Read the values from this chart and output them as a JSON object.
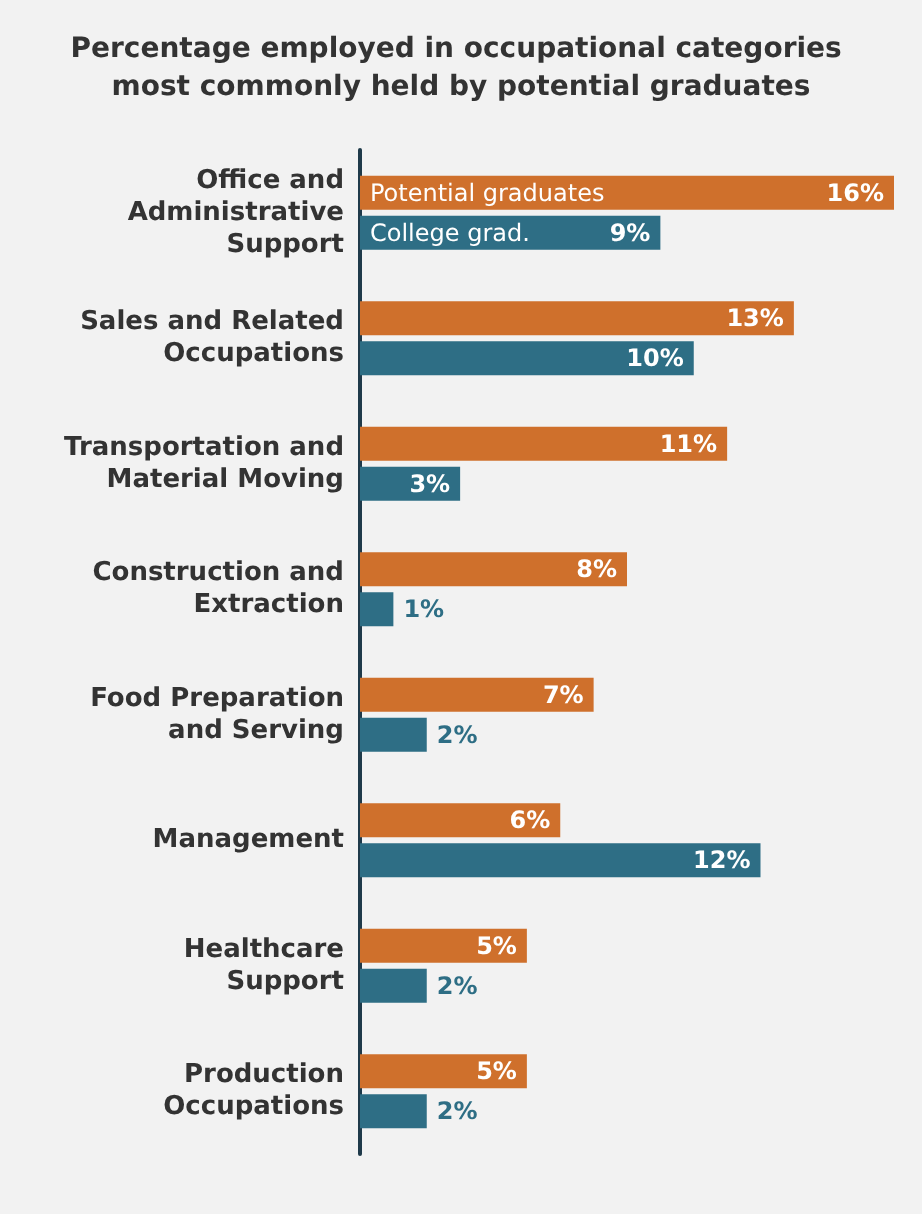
{
  "chart_data": {
    "type": "bar",
    "orientation": "horizontal",
    "title": "Percentage employed in occupational categories most commonly held by potential graduates",
    "categories": [
      "Office and\nAdministrative\nSupport",
      "Sales and Related\nOccupations",
      "Transportation and\nMaterial Moving",
      "Construction and\nExtraction",
      "Food Preparation\nand Serving",
      "Management",
      "Healthcare\nSupport",
      "Production\nOccupations"
    ],
    "series": [
      {
        "name": "Potential graduates",
        "color": "#cf702c",
        "values": [
          16,
          13,
          11,
          8,
          7,
          6,
          5,
          5
        ],
        "value_labels": [
          "16%",
          "13%",
          "11%",
          "8%",
          "7%",
          "6%",
          "5%",
          "5%"
        ]
      },
      {
        "name": "College grad.",
        "color": "#2e6e85",
        "values": [
          9,
          10,
          3,
          1,
          2,
          12,
          2,
          2
        ],
        "value_labels": [
          "9%",
          "10%",
          "3%",
          "1%",
          "2%",
          "12%",
          "2%",
          "2%"
        ]
      }
    ],
    "legend": false,
    "tick_labels": "y"
  }
}
